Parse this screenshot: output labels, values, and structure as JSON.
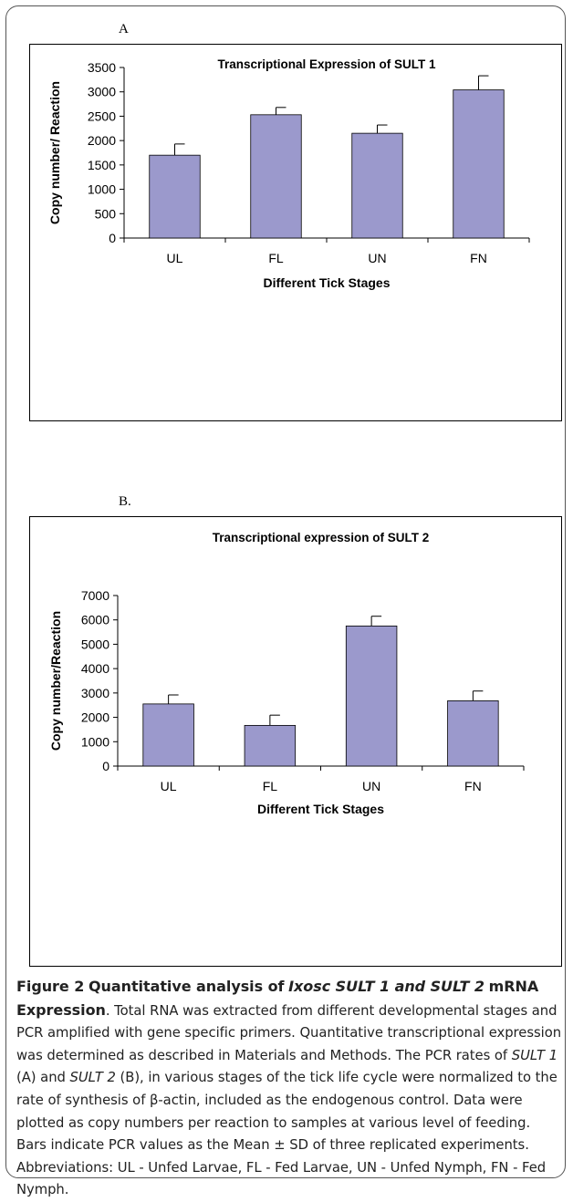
{
  "panels": [
    {
      "label": "A",
      "chart_data": {
        "type": "bar",
        "title": "Transcriptional Expression of SULT 1",
        "xlabel": "Different Tick Stages",
        "ylabel": "Copy number/ Reaction",
        "categories": [
          "UL",
          "FL",
          "UN",
          "FN"
        ],
        "values": [
          1700,
          2530,
          2150,
          3040
        ],
        "errors": [
          230,
          150,
          170,
          290
        ],
        "ylim": [
          0,
          3500
        ],
        "yticks": [
          0,
          500,
          1000,
          1500,
          2000,
          2500,
          3000,
          3500
        ],
        "bar_color": "#9b99cc",
        "grid": false,
        "legend": false
      }
    },
    {
      "label": "B.",
      "chart_data": {
        "type": "bar",
        "title": "Transcriptional expression of SULT 2",
        "xlabel": "Different Tick Stages",
        "ylabel": "Copy number/Reaction",
        "categories": [
          "UL",
          "FL",
          "UN",
          "FN"
        ],
        "values": [
          2550,
          1670,
          5750,
          2680
        ],
        "errors": [
          370,
          420,
          400,
          400
        ],
        "ylim": [
          0,
          7000
        ],
        "yticks": [
          0,
          1000,
          2000,
          3000,
          4000,
          5000,
          6000,
          7000
        ],
        "bar_color": "#9b99cc",
        "grid": false,
        "legend": false
      }
    }
  ],
  "caption": {
    "figure_label": "Figure 2",
    "title_pre": "Quantitative analysis of",
    "title_italic": "Ixosc SULT 1 and SULT 2",
    "title_post": "mRNA Expression",
    "text_1": ". Total RNA was extracted from different developmental stages and PCR amplified with gene specific primers. Quantitative transcriptional expression was determined as described in Materials and Methods. The PCR rates of",
    "gene_1": "SULT 1",
    "text_2": "(A) and",
    "gene_2": "SULT 2",
    "text_3": "(B), in various stages of the tick life cycle were normalized to the rate of synthesis of β-actin, included as the endogenous control. Data were plotted as copy numbers per reaction to samples at various level of feeding. Bars indicate PCR values as the Mean ± SD of three replicated experiments. Abbreviations: UL - Unfed Larvae, FL - Fed Larvae, UN - Unfed Nymph, FN - Fed Nymph."
  }
}
